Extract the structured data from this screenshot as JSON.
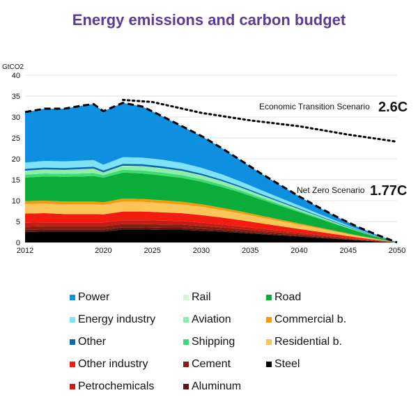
{
  "chart_data": {
    "type": "area",
    "title": "Energy emissions and carbon budget",
    "ylabel": "GtCO2",
    "xlabel": "",
    "ylim": [
      0,
      40
    ],
    "xlim": [
      2012,
      2050
    ],
    "yticks": [
      0,
      5,
      10,
      15,
      20,
      25,
      30,
      35,
      40
    ],
    "xticks": [
      2012,
      2020,
      2025,
      2030,
      2035,
      2040,
      2045,
      2050
    ],
    "grid": true,
    "x": [
      2012,
      2014,
      2016,
      2018,
      2019,
      2020,
      2022,
      2024,
      2026,
      2028,
      2030,
      2032,
      2034,
      2036,
      2038,
      2040,
      2042,
      2044,
      2046,
      2048,
      2050
    ],
    "series": [
      {
        "name": "Steel",
        "color": "#000000",
        "values": [
          2.5,
          2.6,
          2.6,
          2.6,
          2.6,
          2.6,
          3.1,
          3.1,
          3.0,
          3.0,
          2.8,
          2.6,
          2.3,
          2.0,
          1.7,
          1.4,
          1.1,
          0.8,
          0.5,
          0.25,
          0
        ]
      },
      {
        "name": "Aluminum",
        "color": "#5a1a12",
        "values": [
          0.5,
          0.5,
          0.5,
          0.5,
          0.5,
          0.5,
          0.5,
          0.5,
          0.5,
          0.5,
          0.45,
          0.4,
          0.35,
          0.3,
          0.26,
          0.22,
          0.17,
          0.12,
          0.08,
          0.04,
          0
        ]
      },
      {
        "name": "Cement",
        "color": "#8b1e12",
        "values": [
          0.8,
          0.8,
          0.8,
          0.8,
          0.8,
          0.8,
          0.8,
          0.8,
          0.8,
          0.75,
          0.7,
          0.62,
          0.55,
          0.47,
          0.4,
          0.33,
          0.26,
          0.19,
          0.12,
          0.06,
          0
        ]
      },
      {
        "name": "Petrochemicals",
        "color": "#c41e14",
        "values": [
          0.9,
          0.9,
          0.9,
          0.9,
          0.9,
          0.9,
          0.9,
          0.9,
          0.9,
          0.85,
          0.8,
          0.72,
          0.63,
          0.54,
          0.46,
          0.38,
          0.3,
          0.22,
          0.14,
          0.07,
          0
        ]
      },
      {
        "name": "Other industry",
        "color": "#f21d10",
        "values": [
          2.2,
          2.2,
          2.0,
          2.0,
          2.0,
          1.9,
          2.1,
          2.1,
          2.0,
          1.9,
          1.8,
          1.65,
          1.5,
          1.3,
          1.1,
          0.9,
          0.72,
          0.52,
          0.33,
          0.16,
          0
        ]
      },
      {
        "name": "Residential b.",
        "color": "#fbc55a",
        "values": [
          2.3,
          2.3,
          2.3,
          2.3,
          2.3,
          2.3,
          2.4,
          2.3,
          2.2,
          2.1,
          2.0,
          1.8,
          1.6,
          1.4,
          1.2,
          1.0,
          0.8,
          0.6,
          0.38,
          0.18,
          0
        ]
      },
      {
        "name": "Commercial b.",
        "color": "#f59a0c",
        "values": [
          0.7,
          0.7,
          0.7,
          0.7,
          0.7,
          0.6,
          0.7,
          0.7,
          0.7,
          0.65,
          0.6,
          0.55,
          0.5,
          0.44,
          0.38,
          0.32,
          0.25,
          0.18,
          0.12,
          0.06,
          0
        ]
      },
      {
        "name": "Road",
        "color": "#0aad3a",
        "values": [
          5.6,
          5.8,
          5.9,
          6.0,
          6.1,
          5.9,
          6.2,
          6.1,
          5.9,
          5.7,
          5.4,
          5.0,
          4.5,
          3.9,
          3.3,
          2.7,
          2.1,
          1.5,
          0.95,
          0.45,
          0
        ]
      },
      {
        "name": "Shipping",
        "color": "#3ddc72",
        "values": [
          0.7,
          0.7,
          0.7,
          0.7,
          0.7,
          0.6,
          0.7,
          0.7,
          0.7,
          0.65,
          0.6,
          0.55,
          0.5,
          0.43,
          0.36,
          0.3,
          0.23,
          0.16,
          0.1,
          0.05,
          0
        ]
      },
      {
        "name": "Aviation",
        "color": "#8ceeaa",
        "values": [
          0.9,
          0.9,
          0.9,
          1.0,
          1.0,
          0.6,
          0.9,
          1.0,
          1.0,
          0.95,
          0.9,
          0.8,
          0.7,
          0.6,
          0.5,
          0.4,
          0.3,
          0.22,
          0.14,
          0.07,
          0
        ]
      },
      {
        "name": "Rail",
        "color": "#d0f7dc",
        "values": [
          0.1,
          0.1,
          0.1,
          0.1,
          0.1,
          0.1,
          0.1,
          0.1,
          0.1,
          0.1,
          0.09,
          0.08,
          0.07,
          0.06,
          0.05,
          0.04,
          0.03,
          0.02,
          0.01,
          0.005,
          0
        ]
      },
      {
        "name": "Other",
        "color": "#0c6aa8",
        "values": [
          0.4,
          0.4,
          0.4,
          0.4,
          0.4,
          0.4,
          0.4,
          0.4,
          0.4,
          0.38,
          0.35,
          0.32,
          0.28,
          0.24,
          0.2,
          0.17,
          0.13,
          0.09,
          0.06,
          0.03,
          0
        ]
      },
      {
        "name": "Energy industry",
        "color": "#7fe2fb",
        "values": [
          1.5,
          1.6,
          1.6,
          1.6,
          1.6,
          1.4,
          1.6,
          1.6,
          1.6,
          1.5,
          1.4,
          1.3,
          1.1,
          0.95,
          0.8,
          0.65,
          0.5,
          0.36,
          0.22,
          0.1,
          0
        ]
      },
      {
        "name": "Power",
        "color": "#0f8fe0",
        "values": [
          12.1,
          12.5,
          12.6,
          13.2,
          13.4,
          12.8,
          13.0,
          12.2,
          10.4,
          8.8,
          7.6,
          6.3,
          5.1,
          4.0,
          3.1,
          2.2,
          1.5,
          0.95,
          0.55,
          0.24,
          0
        ]
      }
    ],
    "scenarios": [
      {
        "name": "Economic Transition Scenario",
        "label": "2.6C",
        "style": "dotted",
        "x": [
          2022,
          2025,
          2030,
          2035,
          2040,
          2045,
          2050
        ],
        "values": [
          34.1,
          33.6,
          31.0,
          29.2,
          27.8,
          25.8,
          24.1
        ]
      },
      {
        "name": "Net Zero Scenario",
        "label": "1.77C",
        "style": "dashed",
        "x": [
          2012,
          2014,
          2016,
          2018,
          2019,
          2020,
          2022,
          2024,
          2026,
          2028,
          2030,
          2032,
          2034,
          2036,
          2038,
          2040,
          2042,
          2044,
          2046,
          2048,
          2050
        ],
        "values": "stack-total"
      }
    ],
    "legend": {
      "placement": "bottom",
      "columns": [
        [
          "Power",
          "Energy industry",
          "Other",
          "Other industry",
          "Petrochemicals"
        ],
        [
          "Rail",
          "Aviation",
          "Shipping",
          "Cement",
          "Aluminum"
        ],
        [
          "Road",
          "Commercial b.",
          "Residential b.",
          "Steel"
        ]
      ]
    },
    "annotations": [
      {
        "text": "Economic Transition Scenario",
        "value": "2.6C"
      },
      {
        "text": "Net Zero Scenario",
        "value": "1.77C"
      }
    ]
  }
}
